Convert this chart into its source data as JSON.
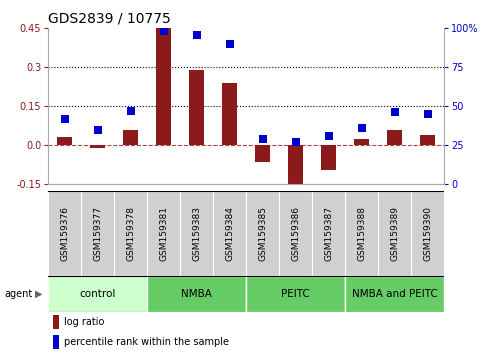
{
  "title": "GDS2839 / 10775",
  "samples": [
    "GSM159376",
    "GSM159377",
    "GSM159378",
    "GSM159381",
    "GSM159383",
    "GSM159384",
    "GSM159385",
    "GSM159386",
    "GSM159387",
    "GSM159388",
    "GSM159389",
    "GSM159390"
  ],
  "log_ratio": [
    0.03,
    -0.01,
    0.06,
    0.45,
    0.29,
    0.24,
    -0.065,
    -0.18,
    -0.095,
    0.025,
    0.06,
    0.04
  ],
  "pct_rank": [
    42,
    35,
    47,
    98,
    96,
    90,
    29,
    27,
    31,
    36,
    46,
    45
  ],
  "ylim_left": [
    -0.15,
    0.45
  ],
  "ylim_right": [
    0,
    100
  ],
  "yticks_left": [
    -0.15,
    0.0,
    0.15,
    0.3,
    0.45
  ],
  "yticks_right": [
    0,
    25,
    50,
    75,
    100
  ],
  "hlines": [
    0.15,
    0.3
  ],
  "bar_color": "#8B1A1A",
  "dot_color": "#0000CC",
  "groups": [
    {
      "label": "control",
      "start": 0,
      "end": 3,
      "color": "#ccffcc"
    },
    {
      "label": "NMBA",
      "start": 3,
      "end": 6,
      "color": "#66cc66"
    },
    {
      "label": "PEITC",
      "start": 6,
      "end": 9,
      "color": "#66cc66"
    },
    {
      "label": "NMBA and PEITC",
      "start": 9,
      "end": 12,
      "color": "#66cc66"
    }
  ],
  "bar_width": 0.45,
  "dot_size": 40,
  "title_fontsize": 10,
  "tick_fontsize": 7,
  "label_fontsize": 6.5,
  "group_fontsize": 7.5
}
